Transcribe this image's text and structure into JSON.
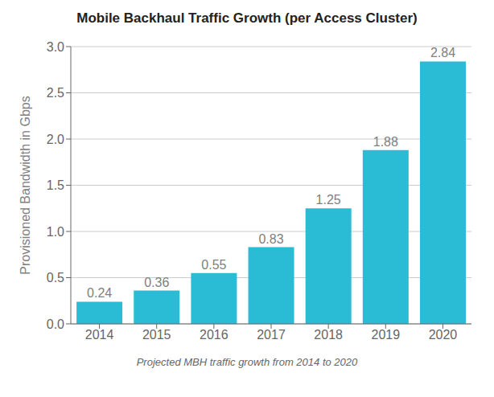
{
  "chart_data": {
    "type": "bar",
    "title": "Mobile Backhaul Traffic Growth (per Access Cluster)",
    "subtitle": "Projected MBH traffic growth from 2014 to 2020",
    "ylabel": "Provisioned Bandwidth in Gbps",
    "categories": [
      "2014",
      "2015",
      "2016",
      "2017",
      "2018",
      "2019",
      "2020"
    ],
    "values": [
      0.24,
      0.36,
      0.55,
      0.83,
      1.25,
      1.88,
      2.84
    ],
    "color": "#29BCD4",
    "ylim": [
      0,
      3.0
    ],
    "yticks": [
      {
        "value": 0,
        "label": "0.0"
      },
      0.5,
      {
        "value": 1,
        "label": "1.0"
      },
      1.5,
      {
        "value": 2,
        "label": "2.0"
      },
      2.5,
      {
        "value": 3,
        "label": "3.0"
      }
    ],
    "grid": true,
    "data_labels": true
  }
}
